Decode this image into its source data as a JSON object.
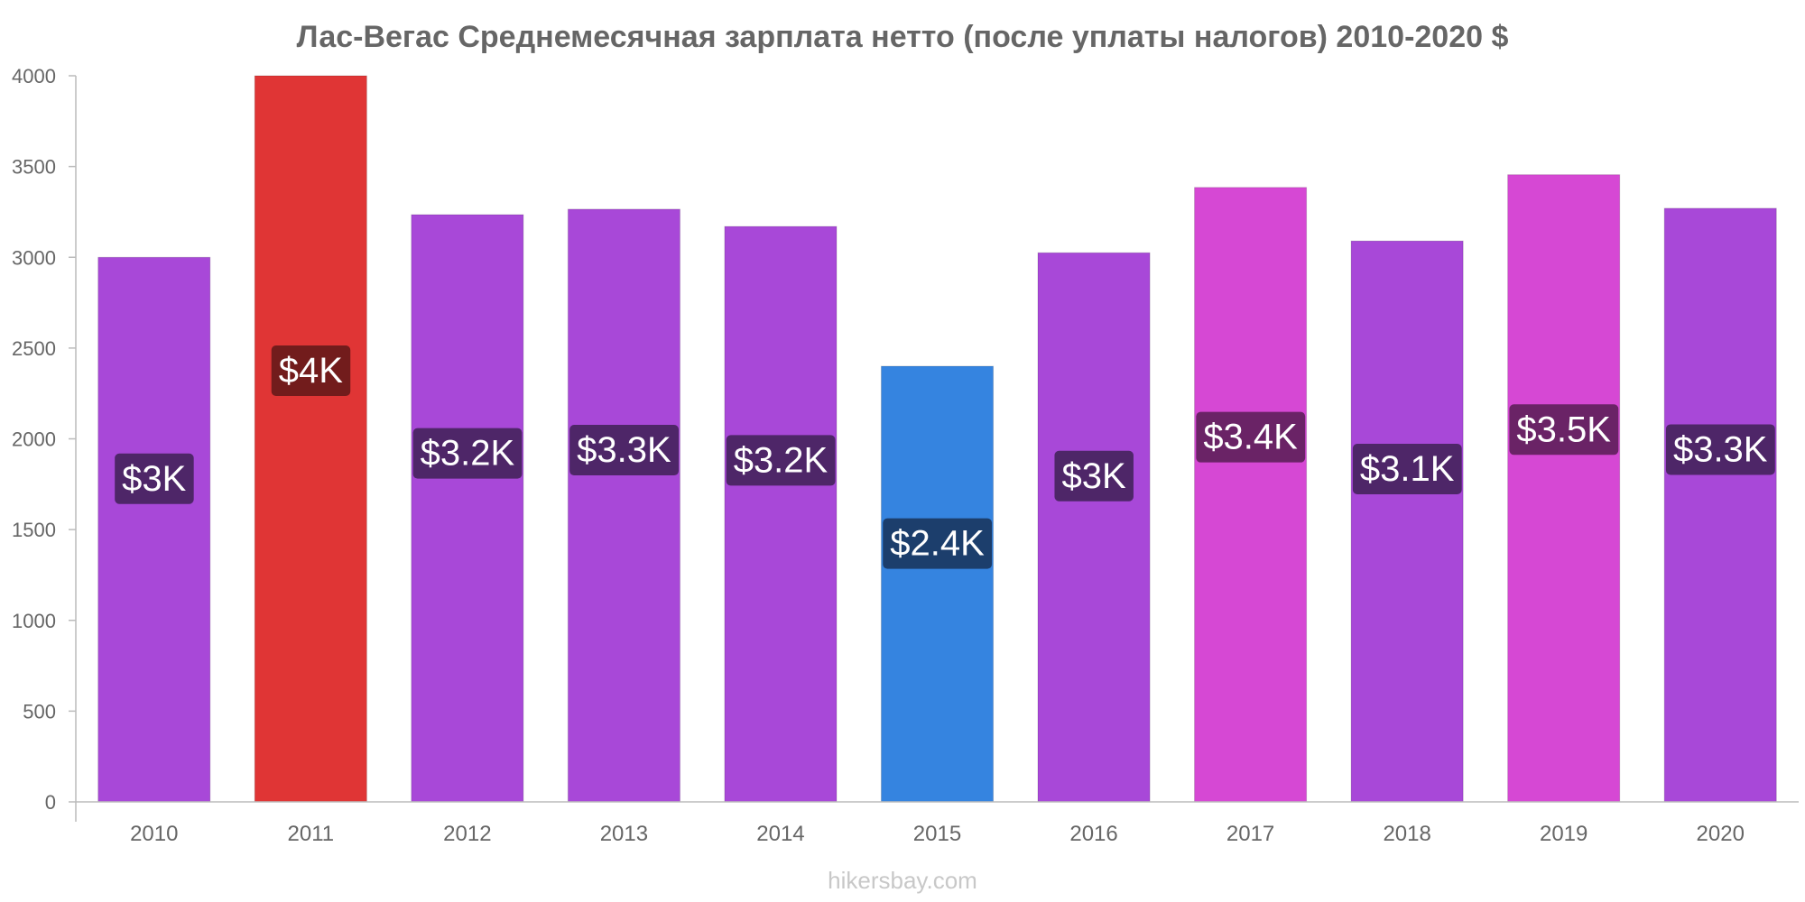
{
  "chart_data": {
    "type": "bar",
    "title": "Лас-Вегас Среднемесячная зарплата нетто (после уплаты налогов) 2010-2020 $",
    "xlabel": "",
    "ylabel": "",
    "categories": [
      "2010",
      "2011",
      "2012",
      "2013",
      "2014",
      "2015",
      "2016",
      "2017",
      "2018",
      "2019",
      "2020"
    ],
    "values": [
      3000,
      4000,
      3235,
      3265,
      3170,
      2400,
      3025,
      3385,
      3090,
      3455,
      3270
    ],
    "data_labels": [
      "$3K",
      "$4K",
      "$3.2K",
      "$3.3K",
      "$3.2K",
      "$2.4K",
      "$3K",
      "$3.4K",
      "$3.1K",
      "$3.5K",
      "$3.3K"
    ],
    "yticks": [
      0,
      500,
      1000,
      1500,
      2000,
      2500,
      3000,
      3500,
      4000
    ],
    "ylim": [
      0,
      4000
    ],
    "grid": false,
    "legend": "none",
    "colors": {
      "default_bar": "#a848d8",
      "default_label_bg": "#4e2668",
      "max_bar": "#e03535",
      "max_label_bg": "#721c1c",
      "min_bar": "#3584e0",
      "min_label_bg": "#1c3e6c",
      "high_bar": "#d648d4",
      "high_label_bg": "#6a2366"
    },
    "bar_colors": [
      "default",
      "max",
      "default",
      "default",
      "default",
      "min",
      "default",
      "high",
      "default",
      "high",
      "default"
    ]
  },
  "footer": "hikersbay.com"
}
